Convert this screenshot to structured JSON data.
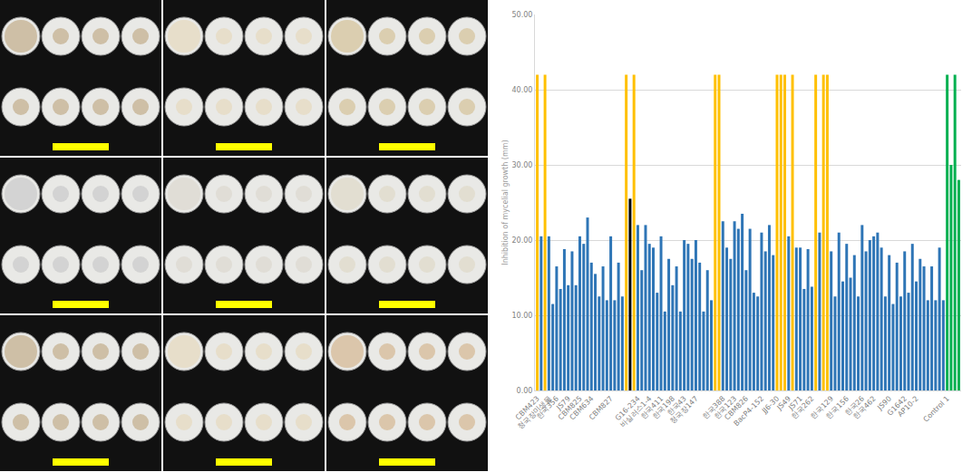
{
  "chart_data": {
    "type": "bar",
    "y_label": "Inhibition of mycelial growth (mm)",
    "categories": [
      "CBM423",
      null,
      null,
      "청국장미생물",
      null,
      "한국356",
      null,
      null,
      "JS79",
      null,
      null,
      "CBM825",
      null,
      null,
      "CBM634",
      null,
      null,
      null,
      null,
      "CBM827",
      null,
      null,
      null,
      null,
      null,
      null,
      "G16-234",
      null,
      null,
      "바실러스1-4",
      null,
      null,
      "한국411",
      null,
      null,
      "한국198",
      null,
      null,
      "한국43",
      null,
      null,
      "청국장147",
      null,
      null,
      null,
      null,
      null,
      null,
      "한국388",
      null,
      null,
      "한국123",
      null,
      null,
      "CBM826",
      null,
      null,
      null,
      "BacP4-152",
      null,
      null,
      null,
      "JJ6-30",
      null,
      null,
      "JS49",
      null,
      null,
      "JS71",
      null,
      null,
      "한국262",
      null,
      null,
      null,
      null,
      "한국129",
      null,
      null,
      null,
      "한국156",
      null,
      null,
      null,
      "한국26",
      null,
      null,
      "한국462",
      null,
      null,
      null,
      "JS90",
      null,
      null,
      null,
      "G1642",
      null,
      null,
      "AP10-2",
      null,
      null,
      null,
      null,
      null,
      null,
      null,
      "Control 1",
      null,
      null,
      null
    ],
    "values": [
      42,
      20.5,
      42,
      20.5,
      11.5,
      16.5,
      13.5,
      18.8,
      14,
      18.5,
      14,
      20.5,
      19.5,
      23,
      17,
      15.5,
      12.5,
      16.5,
      12,
      20.5,
      12,
      17,
      12.5,
      42,
      25.5,
      42,
      22,
      16,
      22,
      19.5,
      19,
      13,
      20.5,
      10.5,
      17.5,
      14,
      16.5,
      10.5,
      20,
      19.5,
      17.5,
      20,
      17,
      10.5,
      16,
      12,
      42,
      42,
      22.5,
      19,
      17.5,
      22.5,
      21.5,
      23.5,
      16,
      21.5,
      13,
      12.5,
      21,
      18.5,
      22,
      18,
      42,
      42,
      42,
      20.5,
      42,
      19,
      19,
      13.5,
      18.8,
      13.8,
      42,
      21,
      42,
      42,
      18.5,
      12.5,
      21,
      14.5,
      19.5,
      15,
      18,
      12.5,
      22,
      18.5,
      20,
      20.5,
      21,
      19,
      12.5,
      18,
      11.5,
      17,
      12.5,
      18.5,
      13,
      19.5,
      14.5,
      17.5,
      16.5,
      12,
      16.5,
      12,
      19,
      12,
      42,
      30,
      42,
      28
    ],
    "colors": [
      "#ffc000",
      "#2e75b6",
      "#ffc000",
      "#2e75b6",
      "#2e75b6",
      "#2e75b6",
      "#2e75b6",
      "#2e75b6",
      "#2e75b6",
      "#2e75b6",
      "#2e75b6",
      "#2e75b6",
      "#2e75b6",
      "#2e75b6",
      "#2e75b6",
      "#2e75b6",
      "#2e75b6",
      "#2e75b6",
      "#2e75b6",
      "#2e75b6",
      "#2e75b6",
      "#2e75b6",
      "#2e75b6",
      "#ffc000",
      "#000000",
      "#ffc000",
      "#2e75b6",
      "#2e75b6",
      "#2e75b6",
      "#2e75b6",
      "#2e75b6",
      "#2e75b6",
      "#2e75b6",
      "#2e75b6",
      "#2e75b6",
      "#2e75b6",
      "#2e75b6",
      "#2e75b6",
      "#2e75b6",
      "#2e75b6",
      "#2e75b6",
      "#2e75b6",
      "#2e75b6",
      "#2e75b6",
      "#2e75b6",
      "#2e75b6",
      "#ffc000",
      "#ffc000",
      "#2e75b6",
      "#2e75b6",
      "#2e75b6",
      "#2e75b6",
      "#2e75b6",
      "#2e75b6",
      "#2e75b6",
      "#2e75b6",
      "#2e75b6",
      "#2e75b6",
      "#2e75b6",
      "#2e75b6",
      "#2e75b6",
      "#2e75b6",
      "#ffc000",
      "#ffc000",
      "#ffc000",
      "#2e75b6",
      "#ffc000",
      "#2e75b6",
      "#2e75b6",
      "#2e75b6",
      "#2e75b6",
      "#2e75b6",
      "#ffc000",
      "#2e75b6",
      "#ffc000",
      "#ffc000",
      "#2e75b6",
      "#2e75b6",
      "#2e75b6",
      "#2e75b6",
      "#2e75b6",
      "#2e75b6",
      "#2e75b6",
      "#2e75b6",
      "#2e75b6",
      "#2e75b6",
      "#2e75b6",
      "#2e75b6",
      "#2e75b6",
      "#2e75b6",
      "#2e75b6",
      "#2e75b6",
      "#2e75b6",
      "#2e75b6",
      "#2e75b6",
      "#2e75b6",
      "#2e75b6",
      "#2e75b6",
      "#2e75b6",
      "#2e75b6",
      "#2e75b6",
      "#2e75b6",
      "#2e75b6",
      "#2e75b6",
      "#2e75b6",
      "#2e75b6",
      "#00b050",
      "#00b050",
      "#00b050",
      "#00b050"
    ],
    "ylim": [
      0,
      50
    ],
    "yticks": [
      {
        "value": 0,
        "label": "0.00"
      },
      {
        "value": 10,
        "label": "10.00"
      },
      {
        "value": 20,
        "label": "20.00"
      },
      {
        "value": 30,
        "label": "30.00"
      },
      {
        "value": 40,
        "label": "40.00"
      },
      {
        "value": 50,
        "label": "50.00"
      }
    ],
    "grid": true
  }
}
